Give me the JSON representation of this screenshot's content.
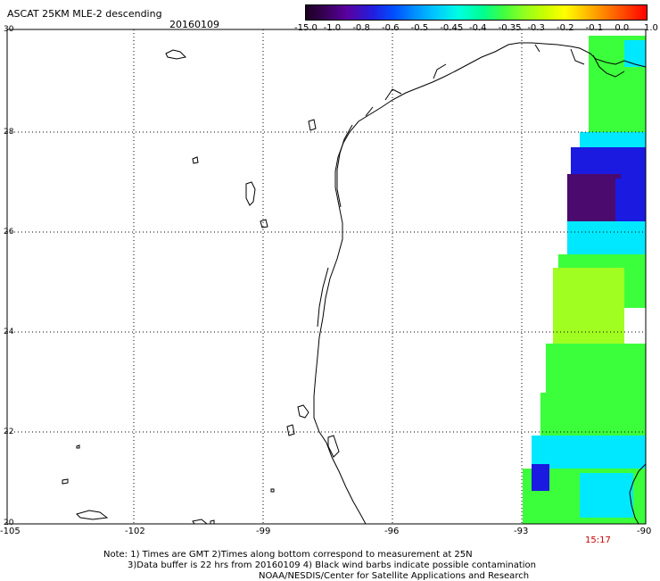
{
  "header": {
    "title": "ASCAT 25KM MLE-2 descending",
    "date": "20160109"
  },
  "colorbar": {
    "labels": [
      "-15.0",
      "-1.0",
      "-0.8",
      "-0.6",
      "-0.5",
      "-0.45",
      "-0.4",
      "-0.35",
      "-0.3",
      "-0.2",
      "-0.1",
      "0.0",
      "1.0"
    ],
    "gradient_colors": [
      "#1a0020",
      "#5a00a0",
      "#0050ff",
      "#00c8ff",
      "#00ff90",
      "#90ff20",
      "#ffff00",
      "#ff8000",
      "#ff0000"
    ]
  },
  "axes": {
    "lat_labels": [
      "30",
      "28",
      "26",
      "24",
      "22",
      "20"
    ],
    "lon_labels": [
      "-105",
      "-102",
      "-99",
      "-96",
      "-93",
      "-90"
    ]
  },
  "swath": {
    "time_label": "15:17",
    "colors": {
      "deep_purple": "#4a0a6e",
      "blue": "#1a1ae0",
      "cyan": "#00e8ff",
      "green": "#3cff3c",
      "yellow_green": "#a0ff20"
    }
  },
  "footer": {
    "note_line1": "Note: 1) Times are GMT 2)Times along bottom correspond to measurement at 25N",
    "note_line2": "3)Data buffer is 22 hrs from 20160109 4) Black wind barbs indicate possible contamination",
    "note_line3": "NOAA/NESDIS/Center for Satellite Applications and Research"
  }
}
